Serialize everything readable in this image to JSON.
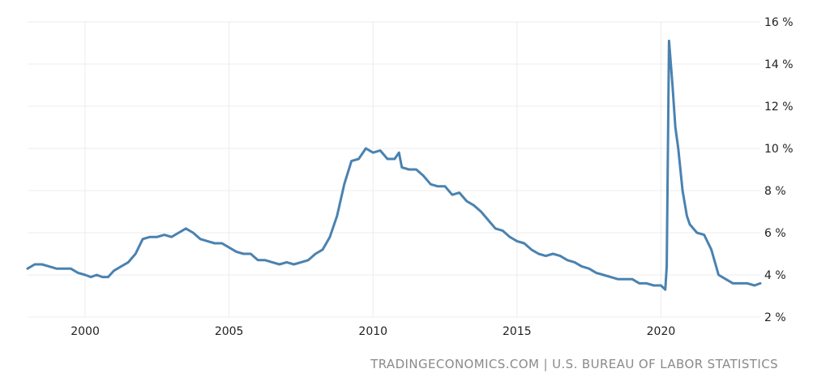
{
  "source_credit": "TRADINGECONOMICS.COM | U.S. BUREAU OF LABOR STATISTICS",
  "chart_data": {
    "type": "line",
    "title": "",
    "xlabel": "",
    "ylabel": "",
    "x_ticks": [
      2000,
      2005,
      2010,
      2015,
      2020
    ],
    "y_ticks": [
      2,
      4,
      6,
      8,
      10,
      12,
      14,
      16
    ],
    "y_tick_suffix": " %",
    "xlim": [
      1998.0,
      2023.45
    ],
    "ylim": [
      2,
      16
    ],
    "grid": true,
    "legend": "none",
    "line_color": "#4a82b0",
    "series": [
      {
        "x": [
          1998.0,
          1998.25,
          1998.5,
          1998.75,
          1999.0,
          1999.25,
          1999.5,
          1999.75,
          2000.0,
          2000.2,
          2000.4,
          2000.6,
          2000.8,
          2001.0,
          2001.25,
          2001.5,
          2001.75,
          2002.0,
          2002.25,
          2002.5,
          2002.75,
          2003.0,
          2003.25,
          2003.5,
          2003.75,
          2004.0,
          2004.25,
          2004.5,
          2004.75,
          2005.0,
          2005.25,
          2005.5,
          2005.75,
          2006.0,
          2006.25,
          2006.5,
          2006.75,
          2007.0,
          2007.25,
          2007.5,
          2007.75,
          2008.0,
          2008.25,
          2008.5,
          2008.75,
          2009.0,
          2009.25,
          2009.5,
          2009.75,
          2010.0,
          2010.25,
          2010.5,
          2010.75,
          2010.9,
          2011.0,
          2011.25,
          2011.5,
          2011.75,
          2012.0,
          2012.25,
          2012.5,
          2012.75,
          2013.0,
          2013.25,
          2013.5,
          2013.75,
          2014.0,
          2014.25,
          2014.5,
          2014.75,
          2015.0,
          2015.25,
          2015.5,
          2015.75,
          2016.0,
          2016.25,
          2016.5,
          2016.75,
          2017.0,
          2017.25,
          2017.5,
          2017.75,
          2018.0,
          2018.25,
          2018.5,
          2018.75,
          2019.0,
          2019.25,
          2019.5,
          2019.75,
          2020.0,
          2020.15,
          2020.2,
          2020.28,
          2020.4,
          2020.5,
          2020.6,
          2020.75,
          2020.9,
          2021.0,
          2021.25,
          2021.5,
          2021.75,
          2022.0,
          2022.25,
          2022.5,
          2022.75,
          2023.0,
          2023.25,
          2023.45
        ],
        "values": [
          4.3,
          4.5,
          4.5,
          4.4,
          4.3,
          4.3,
          4.3,
          4.1,
          4.0,
          3.9,
          4.0,
          3.9,
          3.9,
          4.2,
          4.4,
          4.6,
          5.0,
          5.7,
          5.8,
          5.8,
          5.9,
          5.8,
          6.0,
          6.2,
          6.0,
          5.7,
          5.6,
          5.5,
          5.5,
          5.3,
          5.1,
          5.0,
          5.0,
          4.7,
          4.7,
          4.6,
          4.5,
          4.6,
          4.5,
          4.6,
          4.7,
          5.0,
          5.2,
          5.8,
          6.8,
          8.3,
          9.4,
          9.5,
          10.0,
          9.8,
          9.9,
          9.5,
          9.5,
          9.8,
          9.1,
          9.0,
          9.0,
          8.7,
          8.3,
          8.2,
          8.2,
          7.8,
          7.9,
          7.5,
          7.3,
          7.0,
          6.6,
          6.2,
          6.1,
          5.8,
          5.6,
          5.5,
          5.2,
          5.0,
          4.9,
          5.0,
          4.9,
          4.7,
          4.6,
          4.4,
          4.3,
          4.1,
          4.0,
          3.9,
          3.8,
          3.8,
          3.8,
          3.6,
          3.6,
          3.5,
          3.5,
          3.3,
          4.4,
          15.1,
          13.0,
          11.0,
          10.0,
          8.0,
          6.8,
          6.4,
          6.0,
          5.9,
          5.2,
          4.0,
          3.8,
          3.6,
          3.6,
          3.6,
          3.5,
          3.6
        ]
      }
    ]
  }
}
